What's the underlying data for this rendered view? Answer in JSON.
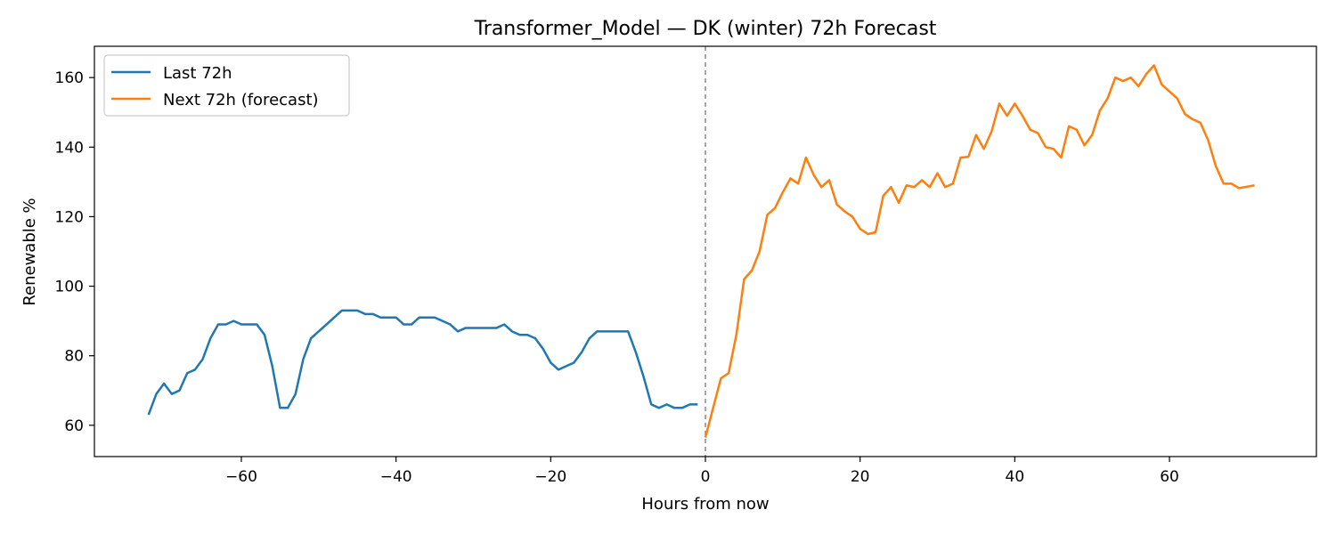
{
  "chart_data": {
    "type": "line",
    "title": "Transformer_Model — DK (winter) 72h Forecast",
    "xlabel": "Hours from now",
    "ylabel": "Renewable %",
    "xlim": [
      -79,
      79
    ],
    "ylim": [
      51,
      169
    ],
    "xticks": [
      -60,
      -40,
      -20,
      0,
      20,
      40,
      60
    ],
    "xtick_labels": [
      "−60",
      "−40",
      "−20",
      "0",
      "20",
      "40",
      "60"
    ],
    "yticks": [
      60,
      80,
      100,
      120,
      140,
      160
    ],
    "ytick_labels": [
      "60",
      "80",
      "100",
      "120",
      "140",
      "160"
    ],
    "grid": false,
    "legend_position": "top-left",
    "reference_line": {
      "x": 0,
      "style": "dashed",
      "color": "#888888"
    },
    "series": [
      {
        "name": "Last 72h",
        "color": "#1f77b4",
        "x": [
          -72,
          -71,
          -70,
          -69,
          -68,
          -67,
          -66,
          -65,
          -64,
          -63,
          -62,
          -61,
          -60,
          -59,
          -58,
          -57,
          -56,
          -55,
          -54,
          -53,
          -52,
          -51,
          -50,
          -49,
          -48,
          -47,
          -46,
          -45,
          -44,
          -43,
          -42,
          -41,
          -40,
          -39,
          -38,
          -37,
          -36,
          -35,
          -34,
          -33,
          -32,
          -31,
          -30,
          -29,
          -28,
          -27,
          -26,
          -25,
          -24,
          -23,
          -22,
          -21,
          -20,
          -19,
          -18,
          -17,
          -16,
          -15,
          -14,
          -13,
          -12,
          -11,
          -10,
          -9,
          -8,
          -7,
          -6,
          -5,
          -4,
          -3,
          -2,
          -1
        ],
        "y": [
          63,
          69,
          72,
          69,
          70,
          75,
          76,
          79,
          85,
          89,
          89,
          90,
          89,
          89,
          89,
          86,
          77,
          65,
          65,
          69,
          79,
          85,
          87,
          89,
          91,
          93,
          93,
          93,
          92,
          92,
          91,
          91,
          91,
          89,
          89,
          91,
          91,
          91,
          90,
          89,
          87,
          88,
          88,
          88,
          88,
          88,
          89,
          87,
          86,
          86,
          85,
          82,
          78,
          76,
          77,
          78,
          81,
          85,
          87,
          87,
          87,
          87,
          87,
          81,
          74,
          66,
          65,
          66,
          65,
          65,
          66,
          66
        ]
      },
      {
        "name": "Next 72h (forecast)",
        "color": "#ff7f0e",
        "x": [
          0,
          1,
          2,
          3,
          4,
          5,
          6,
          7,
          8,
          9,
          10,
          11,
          12,
          13,
          14,
          15,
          16,
          17,
          18,
          19,
          20,
          21,
          22,
          23,
          24,
          25,
          26,
          27,
          28,
          29,
          30,
          31,
          32,
          33,
          34,
          35,
          36,
          37,
          38,
          39,
          40,
          41,
          42,
          43,
          44,
          45,
          46,
          47,
          48,
          49,
          50,
          51,
          52,
          53,
          54,
          55,
          56,
          57,
          58,
          59,
          60,
          61,
          62,
          63,
          64,
          65,
          66,
          67,
          68,
          69,
          70,
          71
        ],
        "y": [
          56.5,
          65,
          73.5,
          75,
          86,
          102,
          104.5,
          110,
          120.5,
          122.5,
          127,
          131,
          129.5,
          137,
          132,
          128.5,
          130.5,
          123.5,
          121.5,
          120,
          116.5,
          115,
          115.5,
          126,
          128.5,
          124,
          129,
          128.5,
          130.5,
          128.5,
          132.5,
          128.5,
          129.5,
          137,
          137.2,
          143.5,
          139.5,
          144.5,
          152.5,
          149,
          152.5,
          149,
          145,
          144,
          140,
          139.5,
          137,
          146,
          145,
          140.5,
          143.5,
          150.5,
          154,
          160,
          159,
          160,
          157.5,
          161,
          163.5,
          158,
          156,
          154,
          149.5,
          148,
          147,
          142,
          134.5,
          129.5,
          129.5,
          128.2,
          128.6,
          129
        ]
      }
    ]
  }
}
